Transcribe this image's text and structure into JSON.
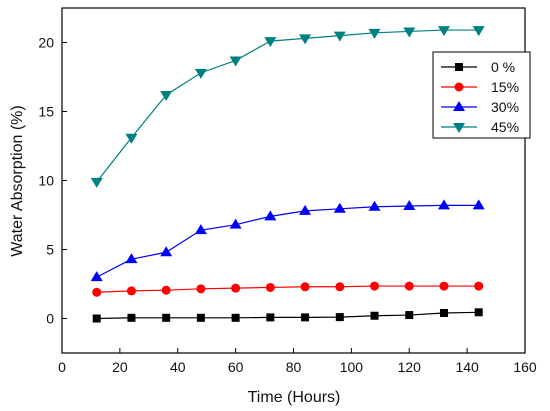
{
  "chart_data": {
    "type": "line",
    "xlabel": "Time (Hours)",
    "ylabel": "Water Absorption (%)",
    "xlim": [
      0,
      160
    ],
    "ylim": [
      -2.5,
      22.5
    ],
    "xticks": [
      0,
      20,
      40,
      60,
      80,
      100,
      120,
      140,
      160
    ],
    "yticks": [
      0,
      5,
      10,
      15,
      20
    ],
    "grid": false,
    "legend_position": "top-right",
    "x": [
      12,
      24,
      36,
      48,
      60,
      72,
      84,
      96,
      108,
      120,
      132,
      144
    ],
    "series": [
      {
        "name": "0 %",
        "color": "#000000",
        "marker": "square",
        "values": [
          0.0,
          0.05,
          0.05,
          0.05,
          0.05,
          0.08,
          0.08,
          0.1,
          0.2,
          0.25,
          0.4,
          0.45
        ]
      },
      {
        "name": "15%",
        "color": "#ff0000",
        "marker": "circle",
        "values": [
          1.9,
          2.0,
          2.05,
          2.15,
          2.2,
          2.25,
          2.3,
          2.3,
          2.35,
          2.35,
          2.35,
          2.35
        ]
      },
      {
        "name": "30%",
        "color": "#0000ff",
        "marker": "triangle-up",
        "values": [
          3.0,
          4.3,
          4.8,
          6.4,
          6.8,
          7.4,
          7.8,
          7.95,
          8.1,
          8.15,
          8.2,
          8.2
        ]
      },
      {
        "name": "45%",
        "color": "#008080",
        "marker": "triangle-down",
        "values": [
          9.9,
          13.1,
          16.2,
          17.8,
          18.7,
          20.1,
          20.3,
          20.5,
          20.7,
          20.8,
          20.9,
          20.9
        ]
      }
    ]
  }
}
